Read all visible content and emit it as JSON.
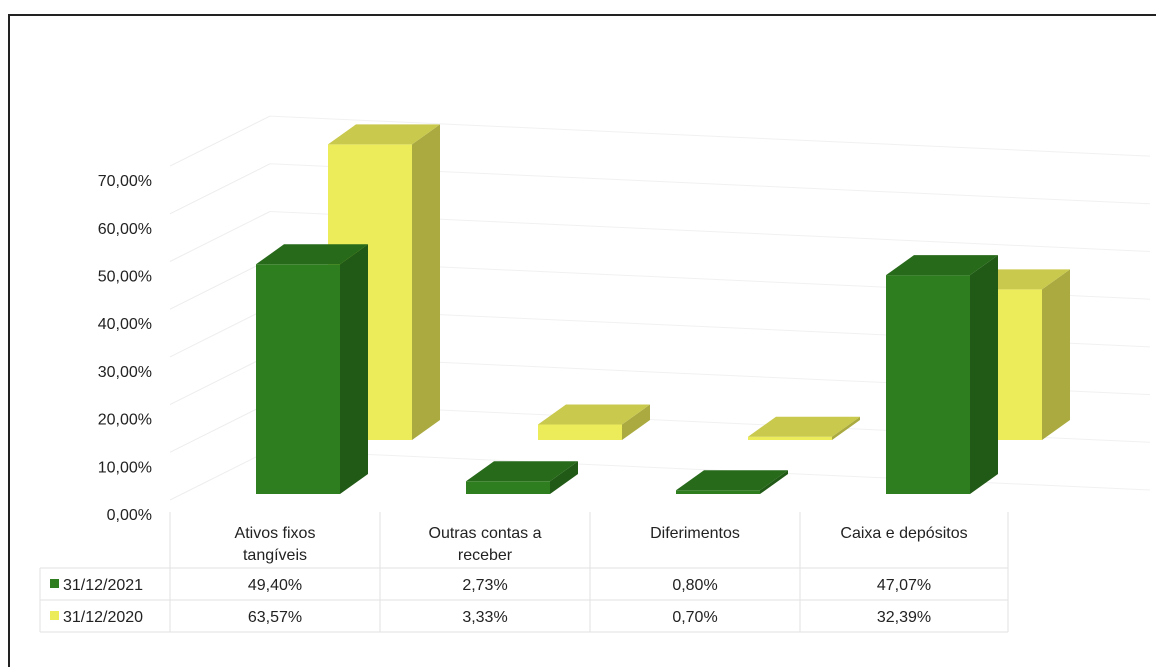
{
  "chart_data": {
    "type": "bar",
    "subtype": "3d-clustered-column-with-data-table",
    "categories": [
      [
        "Ativos fixos",
        "tangíveis"
      ],
      [
        "Outras contas a",
        "receber"
      ],
      [
        "Diferimentos"
      ],
      [
        "Caixa e depósitos"
      ]
    ],
    "series": [
      {
        "name": "31/12/2021",
        "color": "#2e7d1e",
        "values": [
          49.4,
          2.73,
          0.8,
          47.07
        ],
        "labels": [
          "49,40%",
          "2,73%",
          "0,80%",
          "47,07%"
        ]
      },
      {
        "name": "31/12/2020",
        "color": "#ecec5a",
        "values": [
          63.57,
          3.33,
          0.7,
          32.39
        ],
        "labels": [
          "63,57%",
          "3,33%",
          "0,70%",
          "32,39%"
        ]
      }
    ],
    "yticks": [
      "0,00%",
      "10,00%",
      "20,00%",
      "30,00%",
      "40,00%",
      "50,00%",
      "60,00%",
      "70,00%"
    ],
    "ylim": [
      0,
      70
    ],
    "title": "",
    "xlabel": "",
    "ylabel": "",
    "grid": true,
    "legend": "data-table"
  }
}
